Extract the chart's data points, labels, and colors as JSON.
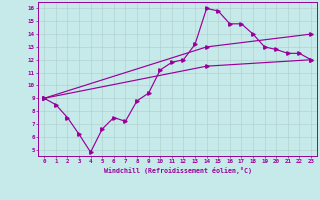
{
  "xlabel": "Windchill (Refroidissement éolien,°C)",
  "bg_color": "#c6eaea",
  "line_color": "#990099",
  "grid_color": "#b0cccc",
  "xlim": [
    -0.5,
    23.5
  ],
  "ylim": [
    4.5,
    16.5
  ],
  "xticks": [
    0,
    1,
    2,
    3,
    4,
    5,
    6,
    7,
    8,
    9,
    10,
    11,
    12,
    13,
    14,
    15,
    16,
    17,
    18,
    19,
    20,
    21,
    22,
    23
  ],
  "yticks": [
    5,
    6,
    7,
    8,
    9,
    10,
    11,
    12,
    13,
    14,
    15,
    16
  ],
  "line1_x": [
    0,
    1,
    2,
    3,
    4,
    5,
    6,
    7,
    8,
    9,
    10,
    11,
    12,
    13,
    14,
    15,
    16,
    17,
    18,
    19,
    20,
    21,
    22,
    23
  ],
  "line1_y": [
    9.0,
    8.5,
    7.5,
    6.2,
    4.8,
    6.6,
    7.5,
    7.2,
    8.8,
    9.4,
    11.2,
    11.8,
    12.0,
    13.2,
    16.0,
    15.8,
    14.8,
    14.8,
    14.0,
    13.0,
    12.8,
    12.5,
    12.5,
    12.0
  ],
  "line2_x": [
    0,
    14,
    23
  ],
  "line2_y": [
    9.0,
    13.0,
    14.0
  ],
  "line3_x": [
    0,
    14,
    23
  ],
  "line3_y": [
    9.0,
    11.5,
    12.0
  ],
  "xticklabels": [
    "0",
    "1",
    "2",
    "3",
    "4",
    "5",
    "6",
    "7",
    "8",
    "9",
    "10",
    "11",
    "12",
    "13",
    "14",
    "15",
    "16",
    "17",
    "18",
    "19",
    "20",
    "21",
    "22",
    "23"
  ],
  "yticklabels": [
    "5",
    "6",
    "7",
    "8",
    "9",
    "10",
    "11",
    "12",
    "13",
    "14",
    "15",
    "16"
  ]
}
